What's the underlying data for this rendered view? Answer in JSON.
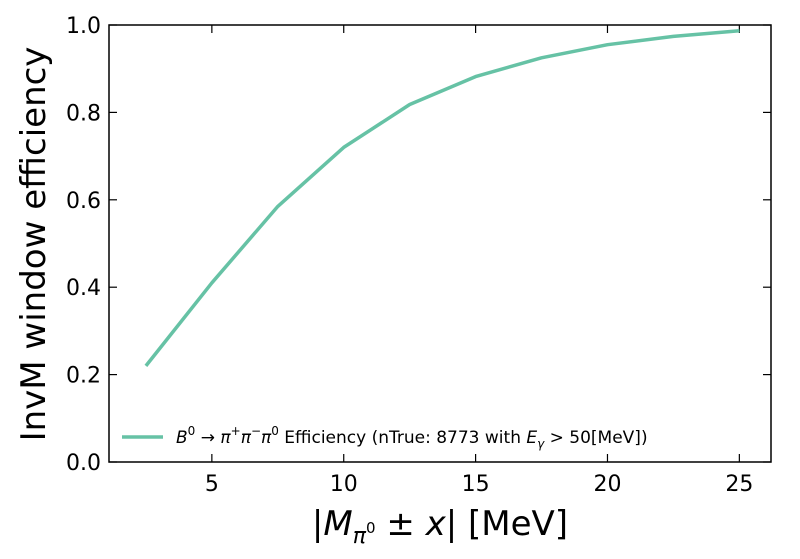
{
  "chart_data": {
    "type": "line",
    "xlabel": "|M_{π⁰} ± x| [MeV]",
    "ylabel": "InvM window efficiency",
    "xlim": [
      1.1,
      26.2
    ],
    "ylim": [
      0.0,
      1.0
    ],
    "xticks": [
      5,
      10,
      15,
      20,
      25
    ],
    "yticks": [
      0.0,
      0.2,
      0.4,
      0.6,
      0.8,
      1.0
    ],
    "xtick_labels": [
      "5",
      "10",
      "15",
      "20",
      "25"
    ],
    "ytick_labels": [
      "0.0",
      "0.2",
      "0.4",
      "0.6",
      "0.8",
      "1.0"
    ],
    "grid": false,
    "legend_position": "lower-right",
    "series": [
      {
        "name": "B⁰ → π⁺π⁻π⁰ Efficiency (nTrue: 8773 with E_γ > 50[MeV])",
        "color": "#66c2a5",
        "x": [
          2.5,
          5,
          7.5,
          10,
          12.5,
          15,
          17.5,
          20,
          22.5,
          25
        ],
        "y": [
          0.22,
          0.41,
          0.585,
          0.72,
          0.818,
          0.882,
          0.925,
          0.955,
          0.974,
          0.987
        ]
      }
    ]
  }
}
